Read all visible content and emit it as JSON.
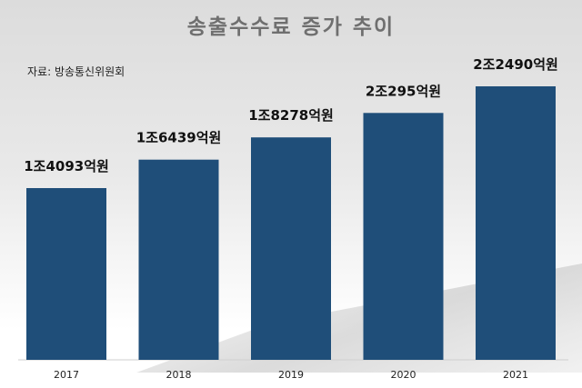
{
  "chart_data": {
    "type": "bar",
    "title": "송출수수료 증가 추이",
    "source": "자료: 방송통신위원회",
    "categories": [
      "2017",
      "2018",
      "2019",
      "2020",
      "2021"
    ],
    "values": [
      14093,
      16439,
      18278,
      20295,
      22490
    ],
    "value_labels": [
      "1조4093억원",
      "1조6439억원",
      "1조8278억원",
      "2조295억원",
      "2조2490억원"
    ],
    "value_unit": "억원",
    "bar_color": "#1f4e79",
    "grid": false,
    "legend": "none"
  }
}
